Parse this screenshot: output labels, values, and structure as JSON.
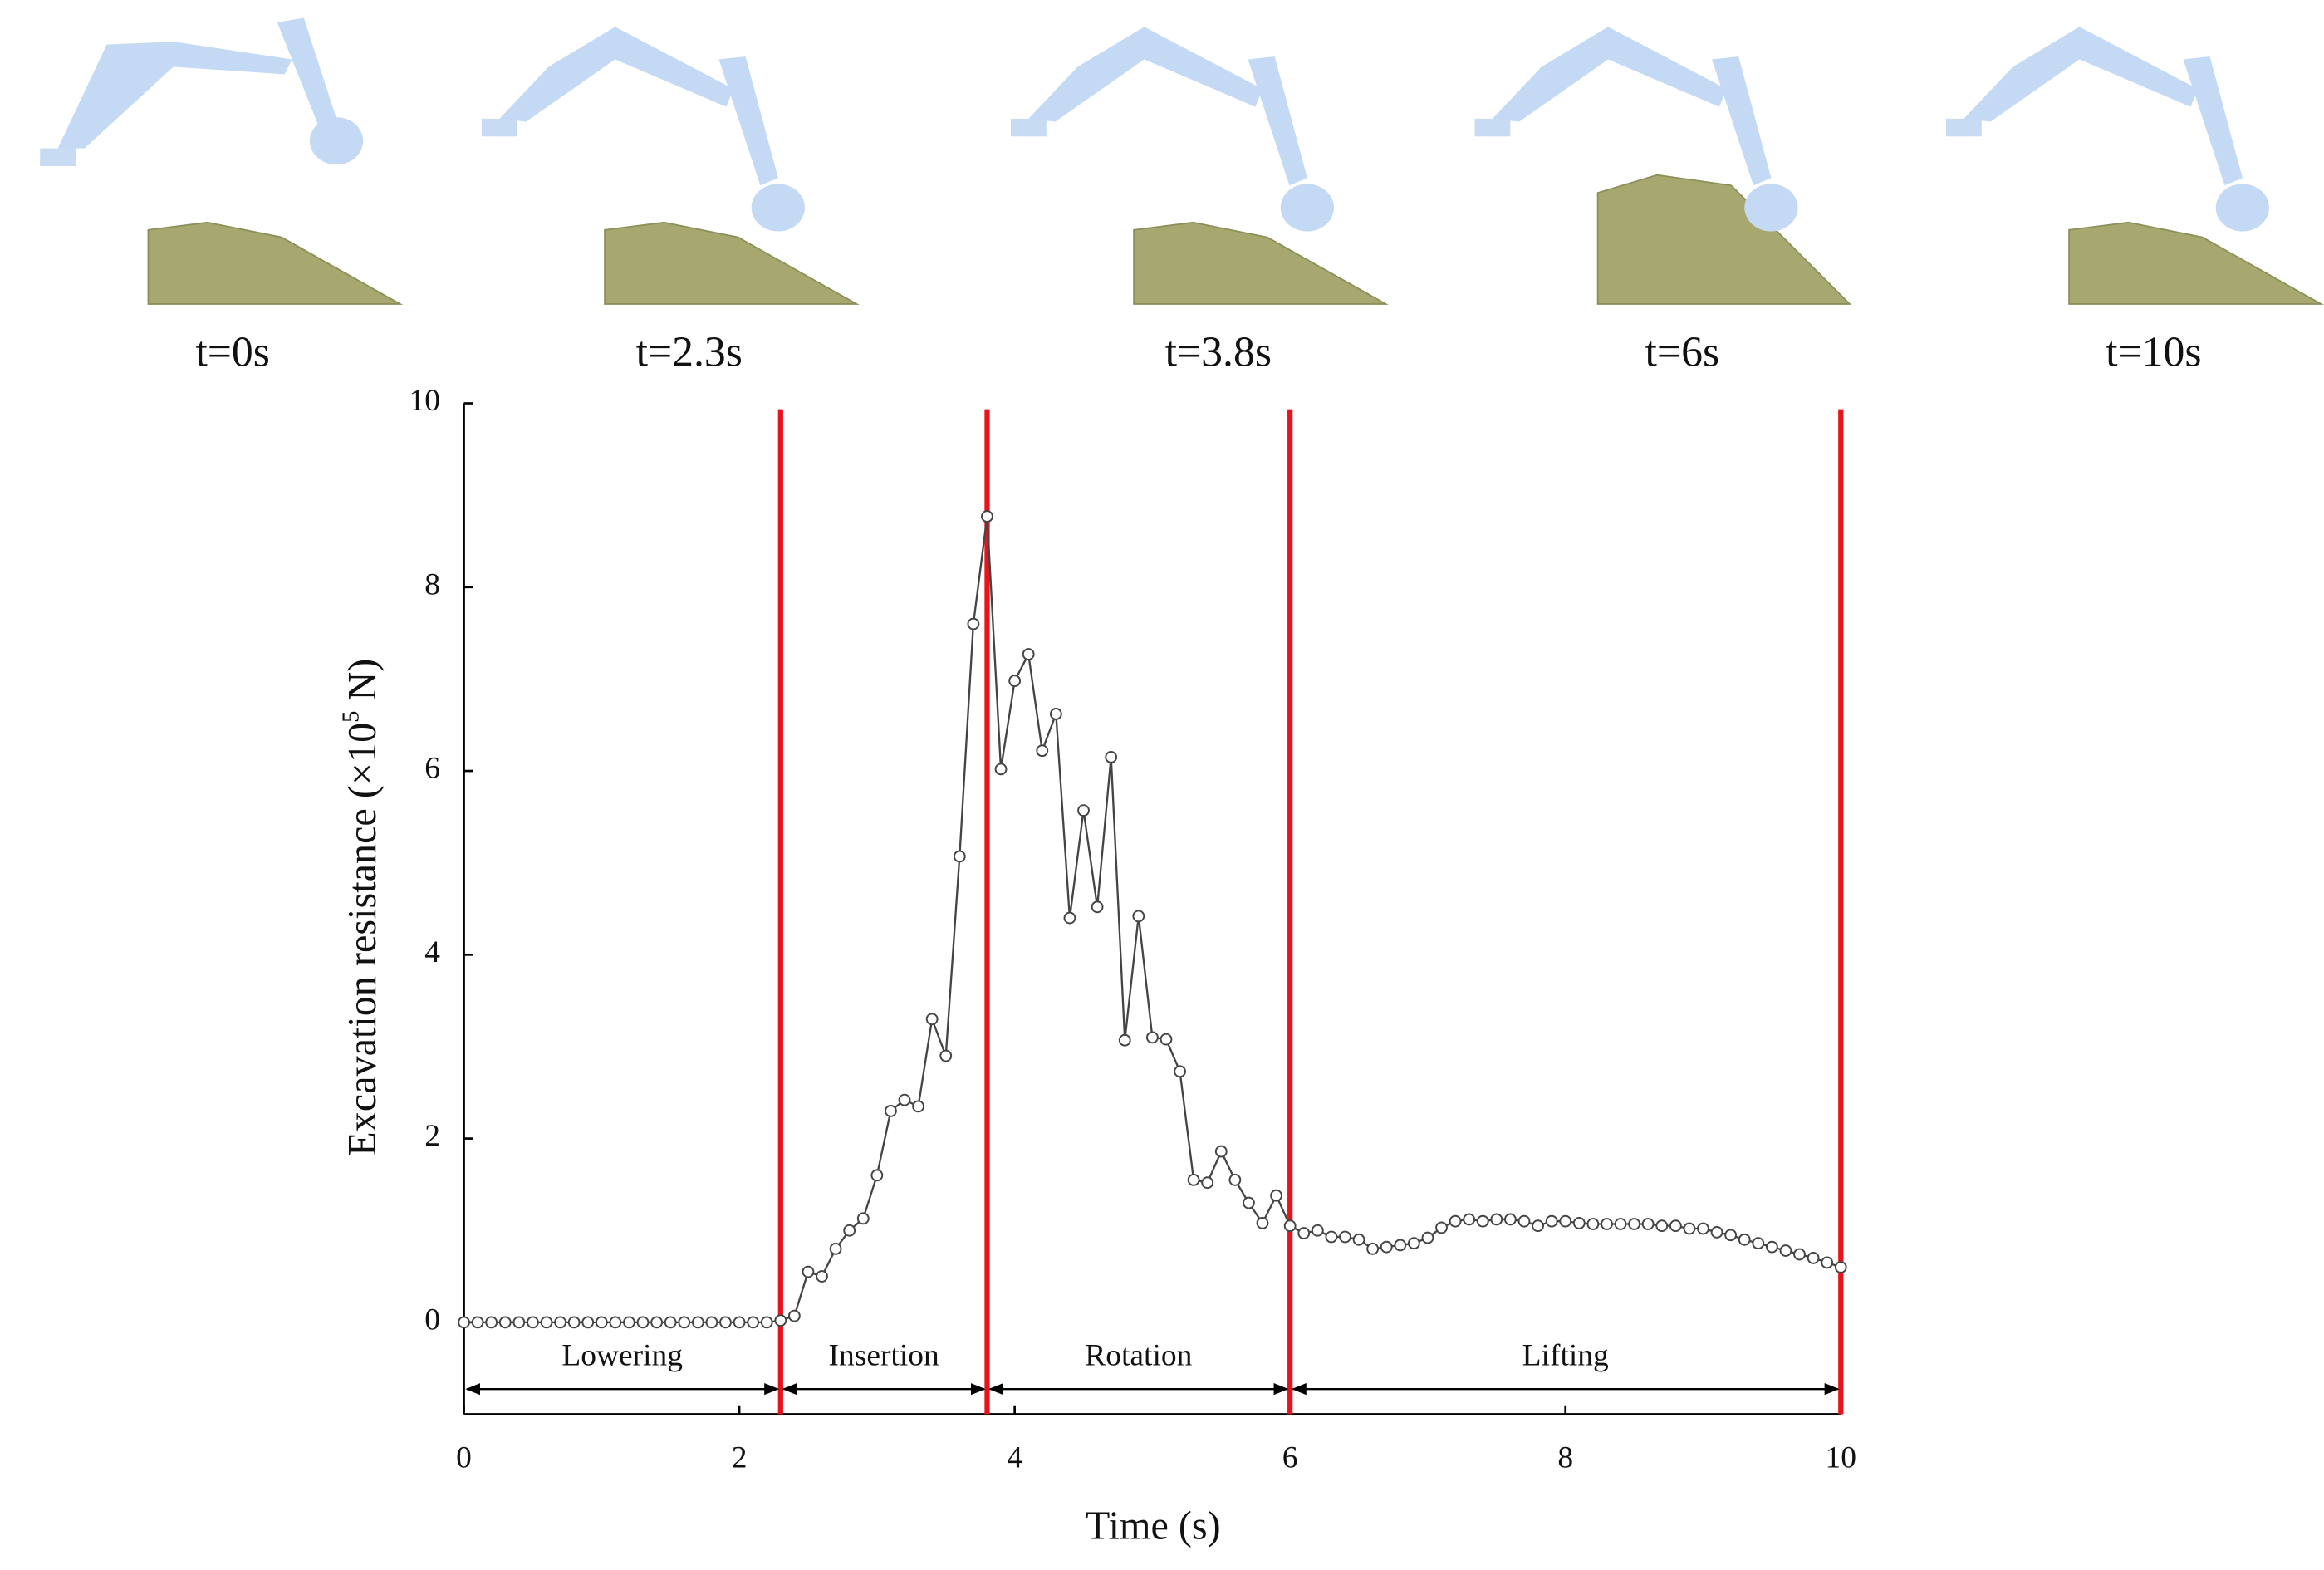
{
  "chart_data": {
    "type": "line",
    "xlabel": "Time (s)",
    "ylabel": {
      "text": "Excavation resistance (×10",
      "sup": "5",
      "end": " N)"
    },
    "snapshots": [
      "t=0s",
      "t=2.3s",
      "t=3.8s",
      "t=6s",
      "t=10s"
    ],
    "x": [
      0,
      0.1,
      0.2,
      0.3,
      0.4,
      0.5,
      0.6,
      0.7,
      0.8,
      0.9,
      1,
      1.1,
      1.2,
      1.3,
      1.4,
      1.5,
      1.6,
      1.7,
      1.8,
      1.9,
      2,
      2.1,
      2.2,
      2.3,
      2.4,
      2.5,
      2.6,
      2.7,
      2.8,
      2.9,
      3,
      3.1,
      3.2,
      3.3,
      3.4,
      3.5,
      3.6,
      3.7,
      3.8,
      3.9,
      4,
      4.1,
      4.2,
      4.3,
      4.4,
      4.5,
      4.6,
      4.7,
      4.8,
      4.9,
      5,
      5.1,
      5.2,
      5.3,
      5.4,
      5.5,
      5.6,
      5.7,
      5.8,
      5.9,
      6,
      6.1,
      6.2,
      6.3,
      6.4,
      6.5,
      6.6,
      6.7,
      6.8,
      6.9,
      7,
      7.1,
      7.2,
      7.3,
      7.4,
      7.5,
      7.6,
      7.7,
      7.8,
      7.9,
      8,
      8.1,
      8.2,
      8.3,
      8.4,
      8.5,
      8.6,
      8.7,
      8.8,
      8.9,
      9,
      9.1,
      9.2,
      9.3,
      9.4,
      9.5,
      9.6,
      9.7,
      9.8,
      9.9,
      10
    ],
    "values": [
      0,
      0,
      0,
      0,
      0,
      0,
      0,
      0,
      0,
      0,
      0,
      0,
      0,
      0,
      0,
      0,
      0,
      0,
      0,
      0,
      0,
      0,
      0,
      0.02,
      0.07,
      0.55,
      0.5,
      0.8,
      1.0,
      1.13,
      1.6,
      2.3,
      2.42,
      2.35,
      3.3,
      2.9,
      5.07,
      7.6,
      8.77,
      6.02,
      6.98,
      7.27,
      6.22,
      6.62,
      4.4,
      5.57,
      4.52,
      6.15,
      3.07,
      4.42,
      3.1,
      3.08,
      2.73,
      1.55,
      1.52,
      1.86,
      1.55,
      1.3,
      1.08,
      1.38,
      1.05,
      0.97,
      1.0,
      0.93,
      0.93,
      0.9,
      0.8,
      0.82,
      0.84,
      0.86,
      0.92,
      1.03,
      1.1,
      1.12,
      1.1,
      1.12,
      1.12,
      1.1,
      1.05,
      1.1,
      1.1,
      1.08,
      1.07,
      1.07,
      1.07,
      1.07,
      1.07,
      1.05,
      1.05,
      1.02,
      1.02,
      0.98,
      0.95,
      0.9,
      0.86,
      0.82,
      0.78,
      0.74,
      0.7,
      0.65,
      0.6
    ],
    "color": "#444444",
    "phase_color": "#e8141b",
    "phases": [
      {
        "label": "Lowering",
        "start": 0,
        "end": 2.3
      },
      {
        "label": "Insertion",
        "start": 2.3,
        "end": 3.8
      },
      {
        "label": "Rotation",
        "start": 3.8,
        "end": 6
      },
      {
        "label": "Lifting",
        "start": 6,
        "end": 10
      }
    ],
    "xlim": [
      0,
      10
    ],
    "xticks": [
      0,
      2,
      4,
      6,
      8,
      10
    ],
    "ylim": [
      -1,
      10
    ],
    "yticks": [
      0,
      2,
      4,
      6,
      8,
      10
    ]
  }
}
